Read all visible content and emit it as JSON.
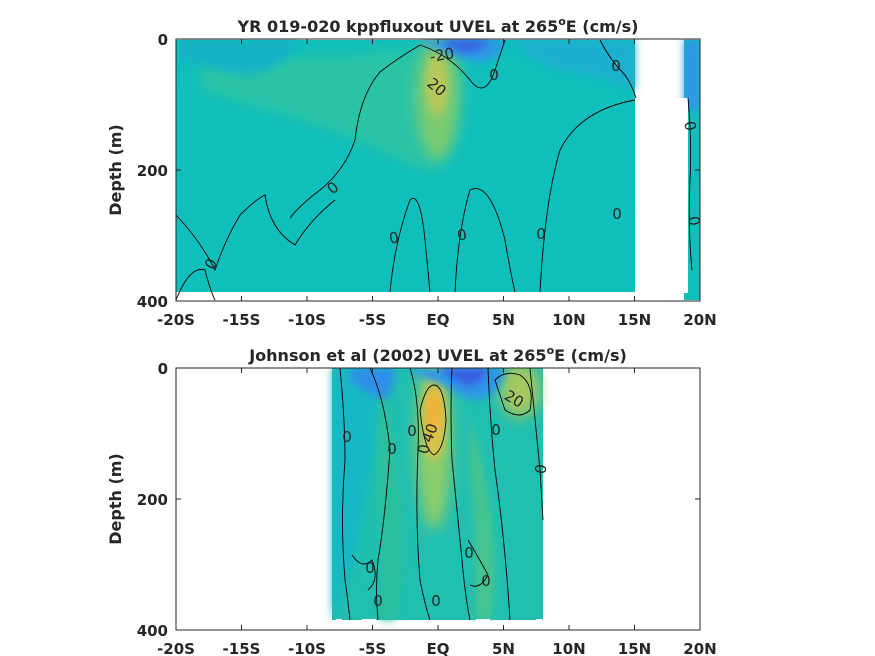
{
  "chart_data": [
    {
      "type": "heatmap",
      "plot_style": "filled contour",
      "title": "YR 019-020 kppfluxout UVEL at 265",
      "title_superscript": "o",
      "title_suffix": "E (cm/s)",
      "xlabel": "",
      "ylabel": "Depth (m)",
      "xlim": [
        -20,
        20
      ],
      "ylim": [
        400,
        0
      ],
      "xticks": [
        -20,
        -15,
        -10,
        -5,
        0,
        5,
        10,
        15,
        20
      ],
      "xtick_labels": [
        "-20S",
        "-15S",
        "-10S",
        "-5S",
        "EQ",
        "5N",
        "10N",
        "15N",
        "20N"
      ],
      "yticks": [
        0,
        200,
        400
      ],
      "ytick_labels": [
        "0",
        "200",
        "400"
      ],
      "data_extent": {
        "x": [
          -19.9,
          15
        ],
        "depth": [
          0,
          385
        ]
      },
      "missing_regions": [
        {
          "x": [
            15,
            19.4
          ],
          "depth": [
            0,
            385
          ]
        }
      ],
      "contour_labels": [
        "-20",
        "20",
        "0",
        "0",
        "0",
        "0",
        "0",
        "0",
        "0",
        "0",
        "0",
        "0",
        "0",
        "0"
      ],
      "features": [
        {
          "name": "eastward core",
          "x": 0.5,
          "depth": 70,
          "value": 22
        },
        {
          "name": "westward surface flow",
          "x": 0.5,
          "depth": 10,
          "value": -22
        }
      ]
    },
    {
      "type": "heatmap",
      "plot_style": "filled contour",
      "title": "Johnson et al (2002) UVEL at 265",
      "title_superscript": "o",
      "title_suffix": "E (cm/s)",
      "xlabel": "",
      "ylabel": "Depth (m)",
      "xlim": [
        -20,
        20
      ],
      "ylim": [
        400,
        0
      ],
      "xticks": [
        -20,
        -15,
        -10,
        -5,
        0,
        5,
        10,
        15,
        20
      ],
      "xtick_labels": [
        "-20S",
        "-15S",
        "-10S",
        "-5S",
        "EQ",
        "5N",
        "10N",
        "15N",
        "20N"
      ],
      "yticks": [
        0,
        200,
        400
      ],
      "ytick_labels": [
        "0",
        "200",
        "400"
      ],
      "data_extent": {
        "x": [
          -8,
          8
        ],
        "depth": [
          0,
          390
        ]
      },
      "contour_labels": [
        "0",
        "0",
        "0",
        "0",
        "0",
        "0",
        "40",
        "20",
        "0",
        "0",
        "0",
        "0",
        "0",
        "0"
      ],
      "features": [
        {
          "name": "equatorial undercurrent core",
          "x": 0,
          "depth": 80,
          "value": 45
        },
        {
          "name": "northern surface jet",
          "x": 6.5,
          "depth": 20,
          "value": 25
        },
        {
          "name": "westward surface flow",
          "x": 0.8,
          "depth": 5,
          "value": -25
        }
      ]
    }
  ],
  "colors": {
    "strong_westward": "#3a5fe0",
    "westward": "#2f96e8",
    "near_zero": "#0fbfbb",
    "weak_eastward": "#3cc29a",
    "eastward": "#8ccc6a",
    "strong_eastward": "#f2b23a",
    "axes": "#262626",
    "background": "#ffffff"
  }
}
